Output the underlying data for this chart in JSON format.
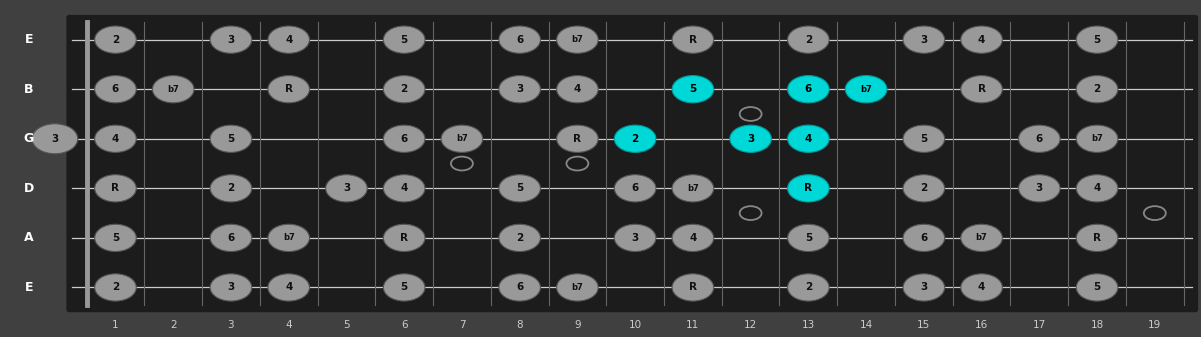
{
  "fret_max": 19,
  "string_labels": [
    "E",
    "B",
    "G",
    "D",
    "A",
    "E"
  ],
  "background_color": "#404040",
  "fretboard_color": "#1c1c1c",
  "dot_color": "#999999",
  "dot_highlight_color": "#00d8d8",
  "string_color": "#cccccc",
  "fret_color": "#666666",
  "nut_color": "#999999",
  "fret_number_color": "#cccccc",
  "string_label_color": "#ffffff",
  "open_circle_color": "#888888",
  "notes": [
    {
      "fret": 1,
      "string": 0,
      "label": "2",
      "highlight": false
    },
    {
      "fret": 3,
      "string": 0,
      "label": "3",
      "highlight": false
    },
    {
      "fret": 4,
      "string": 0,
      "label": "4",
      "highlight": false
    },
    {
      "fret": 6,
      "string": 0,
      "label": "5",
      "highlight": false
    },
    {
      "fret": 8,
      "string": 0,
      "label": "6",
      "highlight": false
    },
    {
      "fret": 9,
      "string": 0,
      "label": "b7",
      "highlight": false
    },
    {
      "fret": 11,
      "string": 0,
      "label": "R",
      "highlight": false
    },
    {
      "fret": 13,
      "string": 0,
      "label": "2",
      "highlight": false
    },
    {
      "fret": 15,
      "string": 0,
      "label": "3",
      "highlight": false
    },
    {
      "fret": 16,
      "string": 0,
      "label": "4",
      "highlight": false
    },
    {
      "fret": 18,
      "string": 0,
      "label": "5",
      "highlight": false
    },
    {
      "fret": 1,
      "string": 1,
      "label": "6",
      "highlight": false
    },
    {
      "fret": 2,
      "string": 1,
      "label": "b7",
      "highlight": false
    },
    {
      "fret": 4,
      "string": 1,
      "label": "R",
      "highlight": false
    },
    {
      "fret": 6,
      "string": 1,
      "label": "2",
      "highlight": false
    },
    {
      "fret": 8,
      "string": 1,
      "label": "3",
      "highlight": false
    },
    {
      "fret": 9,
      "string": 1,
      "label": "4",
      "highlight": false
    },
    {
      "fret": 11,
      "string": 1,
      "label": "5",
      "highlight": true
    },
    {
      "fret": 13,
      "string": 1,
      "label": "6",
      "highlight": true
    },
    {
      "fret": 14,
      "string": 1,
      "label": "b7",
      "highlight": true
    },
    {
      "fret": 16,
      "string": 1,
      "label": "R",
      "highlight": false
    },
    {
      "fret": 18,
      "string": 1,
      "label": "2",
      "highlight": false
    },
    {
      "fret": 1,
      "string": 2,
      "label": "4",
      "highlight": false
    },
    {
      "fret": 3,
      "string": 2,
      "label": "5",
      "highlight": false
    },
    {
      "fret": 6,
      "string": 2,
      "label": "6",
      "highlight": false
    },
    {
      "fret": 7,
      "string": 2,
      "label": "b7",
      "highlight": false
    },
    {
      "fret": 9,
      "string": 2,
      "label": "R",
      "highlight": false
    },
    {
      "fret": 10,
      "string": 2,
      "label": "2",
      "highlight": true
    },
    {
      "fret": 12,
      "string": 2,
      "label": "3",
      "highlight": true
    },
    {
      "fret": 13,
      "string": 2,
      "label": "4",
      "highlight": true
    },
    {
      "fret": 15,
      "string": 2,
      "label": "5",
      "highlight": false
    },
    {
      "fret": 17,
      "string": 2,
      "label": "6",
      "highlight": false
    },
    {
      "fret": 18,
      "string": 2,
      "label": "b7",
      "highlight": false
    },
    {
      "fret": 1,
      "string": 3,
      "label": "R",
      "highlight": false
    },
    {
      "fret": 3,
      "string": 3,
      "label": "2",
      "highlight": false
    },
    {
      "fret": 5,
      "string": 3,
      "label": "3",
      "highlight": false
    },
    {
      "fret": 6,
      "string": 3,
      "label": "4",
      "highlight": false
    },
    {
      "fret": 8,
      "string": 3,
      "label": "5",
      "highlight": false
    },
    {
      "fret": 10,
      "string": 3,
      "label": "6",
      "highlight": false
    },
    {
      "fret": 11,
      "string": 3,
      "label": "b7",
      "highlight": false
    },
    {
      "fret": 13,
      "string": 3,
      "label": "R",
      "highlight": true
    },
    {
      "fret": 15,
      "string": 3,
      "label": "2",
      "highlight": false
    },
    {
      "fret": 17,
      "string": 3,
      "label": "3",
      "highlight": false
    },
    {
      "fret": 18,
      "string": 3,
      "label": "4",
      "highlight": false
    },
    {
      "fret": 1,
      "string": 4,
      "label": "5",
      "highlight": false
    },
    {
      "fret": 3,
      "string": 4,
      "label": "6",
      "highlight": false
    },
    {
      "fret": 4,
      "string": 4,
      "label": "b7",
      "highlight": false
    },
    {
      "fret": 6,
      "string": 4,
      "label": "R",
      "highlight": false
    },
    {
      "fret": 8,
      "string": 4,
      "label": "2",
      "highlight": false
    },
    {
      "fret": 10,
      "string": 4,
      "label": "3",
      "highlight": false
    },
    {
      "fret": 11,
      "string": 4,
      "label": "4",
      "highlight": false
    },
    {
      "fret": 13,
      "string": 4,
      "label": "5",
      "highlight": false
    },
    {
      "fret": 15,
      "string": 4,
      "label": "6",
      "highlight": false
    },
    {
      "fret": 16,
      "string": 4,
      "label": "b7",
      "highlight": false
    },
    {
      "fret": 18,
      "string": 4,
      "label": "R",
      "highlight": false
    },
    {
      "fret": 1,
      "string": 5,
      "label": "2",
      "highlight": false
    },
    {
      "fret": 3,
      "string": 5,
      "label": "3",
      "highlight": false
    },
    {
      "fret": 4,
      "string": 5,
      "label": "4",
      "highlight": false
    },
    {
      "fret": 6,
      "string": 5,
      "label": "5",
      "highlight": false
    },
    {
      "fret": 8,
      "string": 5,
      "label": "6",
      "highlight": false
    },
    {
      "fret": 9,
      "string": 5,
      "label": "b7",
      "highlight": false
    },
    {
      "fret": 11,
      "string": 5,
      "label": "R",
      "highlight": false
    },
    {
      "fret": 13,
      "string": 5,
      "label": "2",
      "highlight": false
    },
    {
      "fret": 15,
      "string": 5,
      "label": "3",
      "highlight": false
    },
    {
      "fret": 16,
      "string": 5,
      "label": "4",
      "highlight": false
    },
    {
      "fret": 18,
      "string": 5,
      "label": "5",
      "highlight": false
    }
  ],
  "open_string_marker": {
    "fret": 0,
    "string": 2,
    "label": "3"
  },
  "inlay_markers": [
    {
      "fret": 7,
      "between": [
        2,
        3
      ]
    },
    {
      "fret": 9,
      "between": [
        2,
        3
      ]
    },
    {
      "fret": 12,
      "between": [
        1,
        2
      ]
    },
    {
      "fret": 12,
      "between": [
        3,
        4
      ]
    },
    {
      "fret": 19,
      "between": [
        3,
        4
      ]
    }
  ]
}
